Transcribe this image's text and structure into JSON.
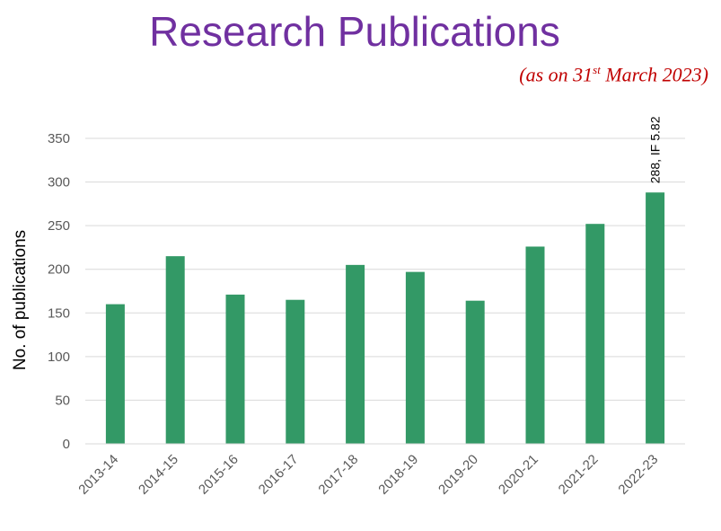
{
  "title": "Research Publications",
  "subtitle": {
    "prefix": "(as on 31",
    "sup": "st",
    "suffix": " March 2023)"
  },
  "colors": {
    "title": "#7030a0",
    "subtitle": "#c00000",
    "bar": "#339966",
    "grid": "#d9d9d9"
  },
  "chart_data": {
    "type": "bar",
    "categories": [
      "2013-14",
      "2014-15",
      "2015-16",
      "2016-17",
      "2017-18",
      "2018-19",
      "2019-20",
      "2020-21",
      "2021-22",
      "2022-23"
    ],
    "values": [
      160,
      215,
      171,
      165,
      205,
      197,
      164,
      226,
      252,
      288
    ],
    "xlabel": "",
    "ylabel": "No. of publications",
    "ylim": [
      0,
      350
    ],
    "yticks": [
      0,
      50,
      100,
      150,
      200,
      250,
      300,
      350
    ],
    "grid": true,
    "annotations": [
      {
        "category": "2022-23",
        "text": "288, IF 5.82"
      }
    ]
  }
}
